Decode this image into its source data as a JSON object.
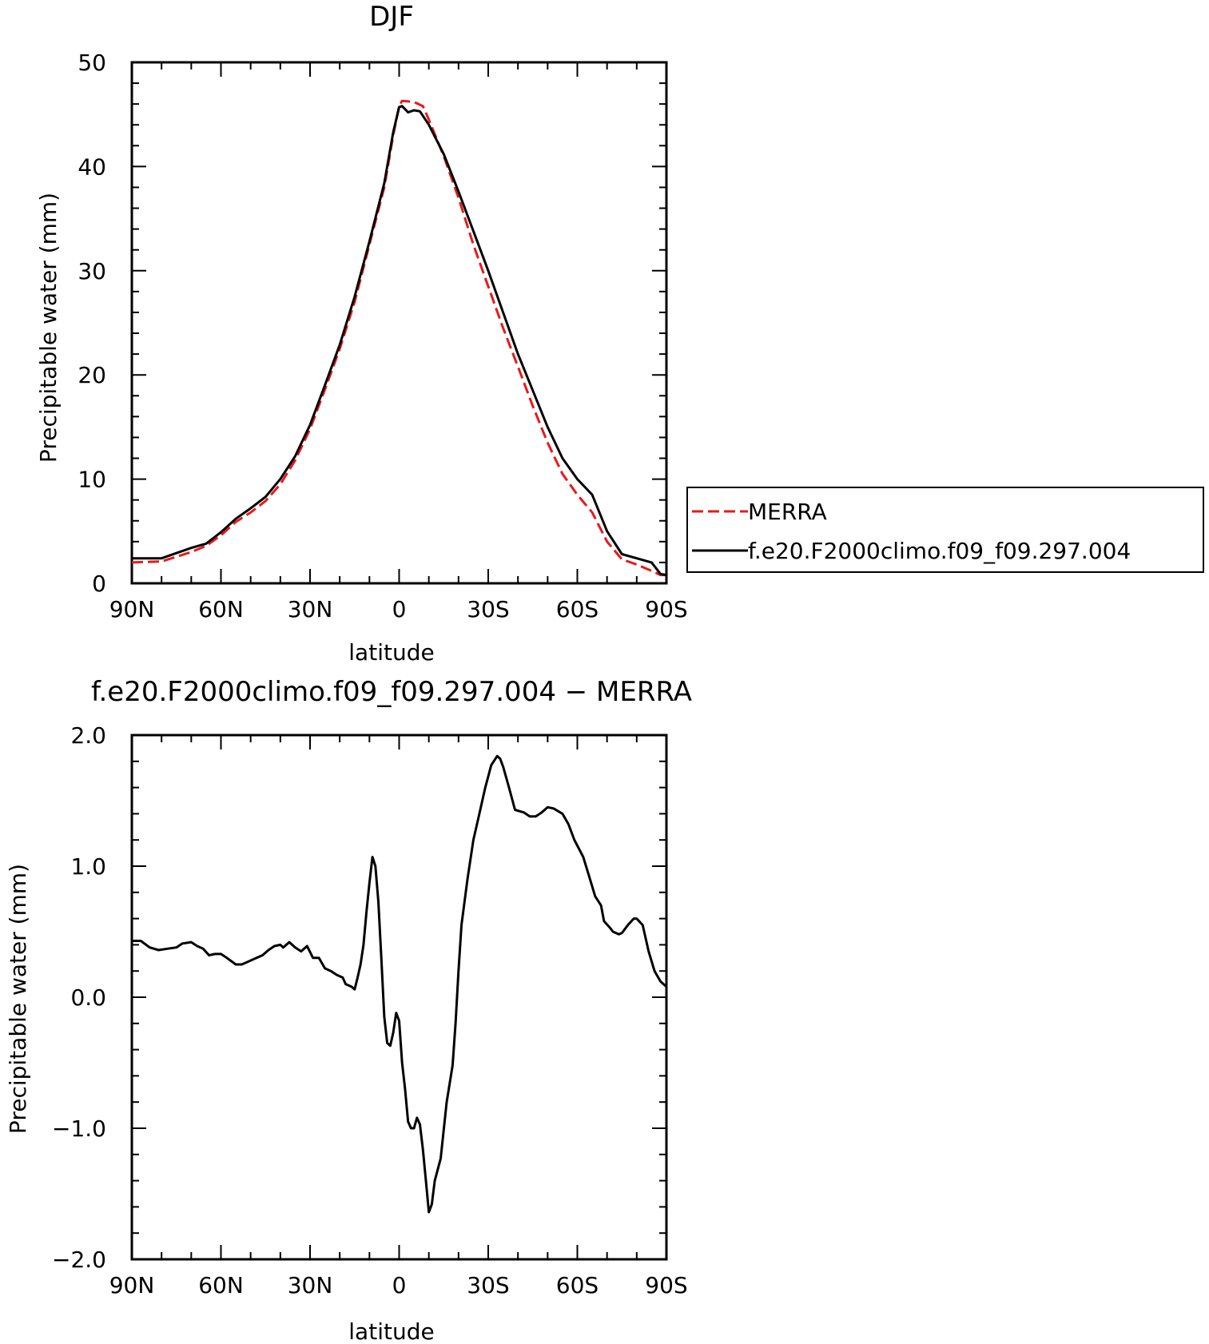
{
  "chart_data": [
    {
      "type": "line",
      "title": "DJF",
      "xlabel": "latitude",
      "ylabel": "Precipitable water (mm)",
      "xlim": [
        90,
        -90
      ],
      "ylim": [
        0,
        50
      ],
      "xticks": [
        90,
        60,
        30,
        0,
        -30,
        -60,
        -90
      ],
      "xtick_labels": [
        "90N",
        "60N",
        "30N",
        "0",
        "30S",
        "60S",
        "90S"
      ],
      "yticks": [
        0,
        10,
        20,
        30,
        40,
        50
      ],
      "ytick_labels": [
        "0",
        "10",
        "20",
        "30",
        "40",
        "50"
      ],
      "legend_position": "right",
      "series": [
        {
          "name": "MERRA",
          "color": "#e8191c",
          "dash": "dashed",
          "points": [
            [
              90,
              2.0
            ],
            [
              80,
              2.1
            ],
            [
              70,
              3.0
            ],
            [
              65,
              3.6
            ],
            [
              60,
              4.6
            ],
            [
              55,
              5.9
            ],
            [
              50,
              6.8
            ],
            [
              45,
              7.9
            ],
            [
              40,
              9.5
            ],
            [
              35,
              11.8
            ],
            [
              30,
              14.8
            ],
            [
              25,
              18.6
            ],
            [
              20,
              22.5
            ],
            [
              15,
              27.0
            ],
            [
              10,
              32.5
            ],
            [
              5,
              38.0
            ],
            [
              2,
              43.0
            ],
            [
              0,
              45.8
            ],
            [
              -1,
              46.3
            ],
            [
              -5,
              46.2
            ],
            [
              -8,
              45.8
            ],
            [
              -10,
              44.5
            ],
            [
              -15,
              41.0
            ],
            [
              -20,
              37.0
            ],
            [
              -25,
              32.5
            ],
            [
              -30,
              28.5
            ],
            [
              -35,
              24.5
            ],
            [
              -40,
              20.8
            ],
            [
              -45,
              17.0
            ],
            [
              -50,
              13.5
            ],
            [
              -55,
              10.5
            ],
            [
              -60,
              8.5
            ],
            [
              -65,
              6.8
            ],
            [
              -70,
              4.0
            ],
            [
              -75,
              2.3
            ],
            [
              -80,
              1.8
            ],
            [
              -85,
              1.2
            ],
            [
              -88,
              0.8
            ],
            [
              -90,
              0.8
            ]
          ]
        },
        {
          "name": "f.e20.F2000climo.f09_f09.297.004",
          "color": "#000000",
          "dash": "solid",
          "points": [
            [
              90,
              2.4
            ],
            [
              80,
              2.4
            ],
            [
              70,
              3.4
            ],
            [
              65,
              3.8
            ],
            [
              60,
              4.9
            ],
            [
              55,
              6.2
            ],
            [
              50,
              7.2
            ],
            [
              45,
              8.3
            ],
            [
              40,
              10.0
            ],
            [
              35,
              12.2
            ],
            [
              30,
              15.2
            ],
            [
              25,
              19.0
            ],
            [
              20,
              22.9
            ],
            [
              15,
              27.5
            ],
            [
              10,
              32.8
            ],
            [
              5,
              38.4
            ],
            [
              2,
              43.3
            ],
            [
              0,
              45.7
            ],
            [
              -1,
              45.8
            ],
            [
              -3,
              45.2
            ],
            [
              -5,
              45.4
            ],
            [
              -7,
              45.3
            ],
            [
              -10,
              44.0
            ],
            [
              -15,
              41.2
            ],
            [
              -20,
              37.6
            ],
            [
              -25,
              33.8
            ],
            [
              -30,
              30.0
            ],
            [
              -35,
              26.0
            ],
            [
              -40,
              22.0
            ],
            [
              -45,
              18.5
            ],
            [
              -50,
              15.0
            ],
            [
              -55,
              12.0
            ],
            [
              -60,
              10.0
            ],
            [
              -65,
              8.5
            ],
            [
              -70,
              5.0
            ],
            [
              -75,
              2.8
            ],
            [
              -80,
              2.4
            ],
            [
              -85,
              2.0
            ],
            [
              -88,
              0.9
            ],
            [
              -90,
              0.8
            ]
          ]
        }
      ]
    },
    {
      "type": "line",
      "title": "f.e20.F2000climo.f09_f09.297.004 − MERRA",
      "xlabel": "latitude",
      "ylabel": "Precipitable water (mm)",
      "xlim": [
        90,
        -90
      ],
      "ylim": [
        -2.0,
        2.0
      ],
      "xticks": [
        90,
        60,
        30,
        0,
        -30,
        -60,
        -90
      ],
      "xtick_labels": [
        "90N",
        "60N",
        "30N",
        "0",
        "30S",
        "60S",
        "90S"
      ],
      "yticks": [
        -2.0,
        -1.0,
        0.0,
        1.0,
        2.0
      ],
      "ytick_labels": [
        "−2.0",
        "−1.0",
        "0.0",
        "1.0",
        "2.0"
      ],
      "series": [
        {
          "color": "#000000",
          "dash": "solid",
          "points": [
            [
              90,
              0.43
            ],
            [
              87,
              0.43
            ],
            [
              84,
              0.38
            ],
            [
              81,
              0.36
            ],
            [
              78,
              0.37
            ],
            [
              75,
              0.38
            ],
            [
              73,
              0.41
            ],
            [
              70,
              0.42
            ],
            [
              68,
              0.39
            ],
            [
              66,
              0.37
            ],
            [
              64,
              0.32
            ],
            [
              62,
              0.33
            ],
            [
              60,
              0.33
            ],
            [
              58,
              0.3
            ],
            [
              55,
              0.25
            ],
            [
              53,
              0.25
            ],
            [
              51,
              0.27
            ],
            [
              49,
              0.29
            ],
            [
              46,
              0.32
            ],
            [
              44,
              0.36
            ],
            [
              42,
              0.39
            ],
            [
              40,
              0.4
            ],
            [
              39,
              0.38
            ],
            [
              37,
              0.42
            ],
            [
              35,
              0.38
            ],
            [
              33,
              0.35
            ],
            [
              31,
              0.39
            ],
            [
              29,
              0.3
            ],
            [
              27,
              0.3
            ],
            [
              25,
              0.22
            ],
            [
              23,
              0.2
            ],
            [
              21,
              0.17
            ],
            [
              19,
              0.15
            ],
            [
              18,
              0.1
            ],
            [
              16,
              0.08
            ],
            [
              15,
              0.06
            ],
            [
              14,
              0.15
            ],
            [
              13,
              0.25
            ],
            [
              12,
              0.4
            ],
            [
              11,
              0.65
            ],
            [
              10,
              0.87
            ],
            [
              9,
              1.07
            ],
            [
              8,
              1.0
            ],
            [
              7,
              0.73
            ],
            [
              6,
              0.3
            ],
            [
              5,
              -0.15
            ],
            [
              4,
              -0.35
            ],
            [
              3,
              -0.37
            ],
            [
              2,
              -0.27
            ],
            [
              1,
              -0.12
            ],
            [
              0,
              -0.18
            ],
            [
              -1,
              -0.5
            ],
            [
              -2,
              -0.7
            ],
            [
              -3,
              -0.95
            ],
            [
              -4,
              -1.0
            ],
            [
              -5,
              -1.0
            ],
            [
              -6,
              -0.92
            ],
            [
              -7,
              -0.97
            ],
            [
              -8,
              -1.16
            ],
            [
              -9,
              -1.4
            ],
            [
              -10,
              -1.64
            ],
            [
              -11,
              -1.58
            ],
            [
              -12,
              -1.4
            ],
            [
              -14,
              -1.23
            ],
            [
              -16,
              -0.8
            ],
            [
              -18,
              -0.52
            ],
            [
              -19,
              -0.2
            ],
            [
              -20,
              0.2
            ],
            [
              -21,
              0.55
            ],
            [
              -23,
              0.9
            ],
            [
              -25,
              1.2
            ],
            [
              -27,
              1.4
            ],
            [
              -29,
              1.6
            ],
            [
              -31,
              1.77
            ],
            [
              -33,
              1.84
            ],
            [
              -34,
              1.82
            ],
            [
              -35,
              1.76
            ],
            [
              -37,
              1.6
            ],
            [
              -39,
              1.43
            ],
            [
              -42,
              1.41
            ],
            [
              -44,
              1.38
            ],
            [
              -46,
              1.38
            ],
            [
              -48,
              1.41
            ],
            [
              -50,
              1.45
            ],
            [
              -52,
              1.44
            ],
            [
              -55,
              1.4
            ],
            [
              -57,
              1.32
            ],
            [
              -59,
              1.2
            ],
            [
              -62,
              1.07
            ],
            [
              -64,
              0.92
            ],
            [
              -66,
              0.77
            ],
            [
              -68,
              0.7
            ],
            [
              -69,
              0.58
            ],
            [
              -71,
              0.53
            ],
            [
              -72,
              0.5
            ],
            [
              -74,
              0.48
            ],
            [
              -75,
              0.49
            ],
            [
              -77,
              0.55
            ],
            [
              -79,
              0.6
            ],
            [
              -80,
              0.6
            ],
            [
              -82,
              0.55
            ],
            [
              -84,
              0.35
            ],
            [
              -86,
              0.2
            ],
            [
              -88,
              0.12
            ],
            [
              -90,
              0.08
            ]
          ]
        }
      ]
    }
  ]
}
